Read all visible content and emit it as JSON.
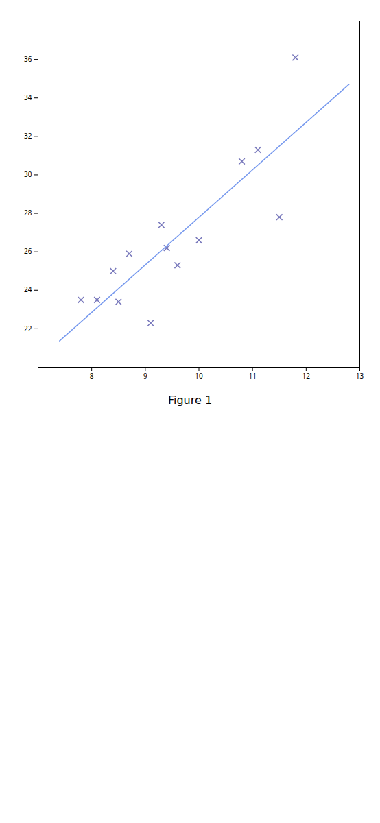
{
  "chart_data": {
    "type": "scatter",
    "title": "Figure 1",
    "xlim": [
      7,
      13
    ],
    "xticks": [
      8,
      9,
      10,
      11,
      12,
      13
    ],
    "ylim": [
      20,
      38
    ],
    "yticks": [
      22,
      24,
      26,
      28,
      30,
      32,
      34,
      36
    ],
    "grid": false,
    "series": [
      {
        "type": "scatter",
        "marker": "x",
        "color": "#7777bb",
        "x": [
          8.7,
          11.5,
          9.4,
          9.3,
          10.0,
          8.1,
          10.8,
          7.8,
          11.8,
          8.5,
          9.6,
          9.1,
          8.4,
          11.1
        ],
        "values": [
          25.9,
          27.8,
          26.2,
          27.4,
          26.6,
          23.5,
          30.7,
          23.5,
          36.1,
          23.4,
          25.3,
          22.3,
          25.0,
          31.3
        ]
      },
      {
        "type": "line",
        "line_style": "solid",
        "color": "#7799ee",
        "x": [
          7.4,
          12.8
        ],
        "values": [
          21.368,
          34.706
        ]
      }
    ]
  }
}
